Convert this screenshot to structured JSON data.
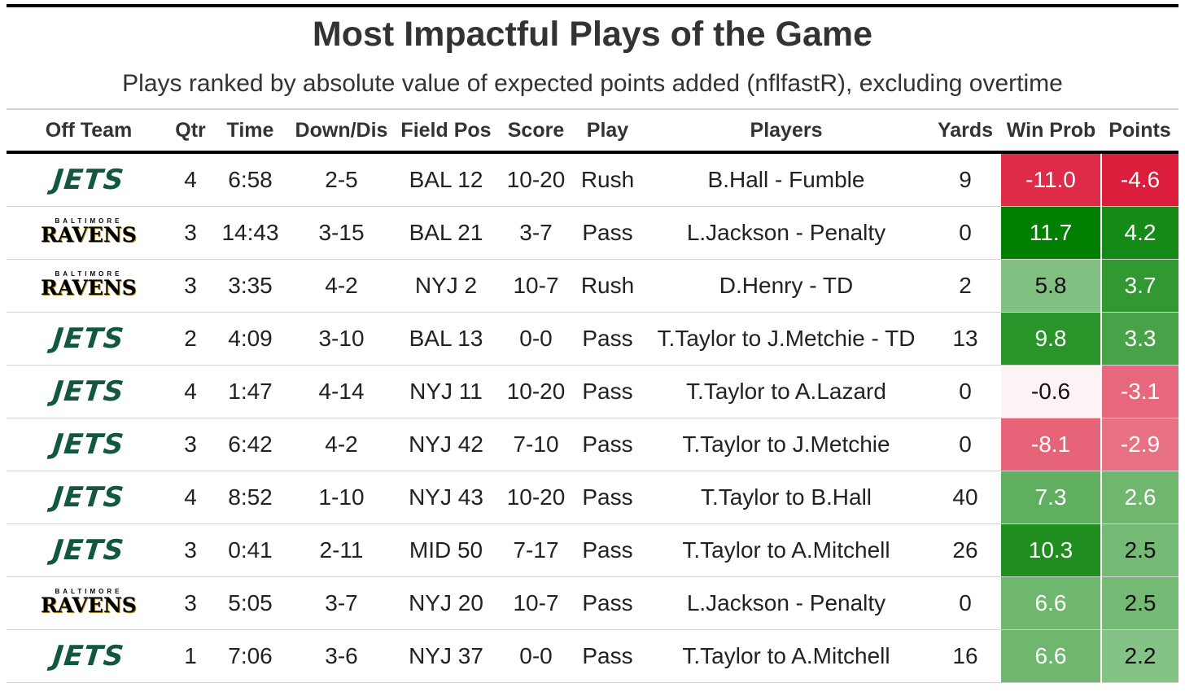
{
  "header": {
    "title": "Most Impactful Plays of the Game",
    "subtitle": "Plays ranked by absolute value of expected points added (nflfastR), excluding overtime"
  },
  "table": {
    "columns": [
      "Off Team",
      "Qtr",
      "Time",
      "Down/Dis",
      "Field Pos",
      "Score",
      "Play",
      "Players",
      "Yards",
      "Win Prob",
      "Points"
    ],
    "positive_color": "#007f00",
    "negative_color": "#dc1e3c",
    "rows": [
      [
        [
          "JETS"
        ],
        "4",
        "6:58",
        "2-5",
        "BAL 12",
        "10-20",
        "Rush",
        "B.Hall - Fumble",
        "9",
        "-11.0",
        "-4.6"
      ],
      [
        [
          "BALTIMORE",
          "RAVENS"
        ],
        "3",
        "14:43",
        "3-15",
        "BAL 21",
        "3-7",
        "Pass",
        "L.Jackson - Penalty",
        "0",
        "11.7",
        "4.2"
      ],
      [
        [
          "BALTIMORE",
          "RAVENS"
        ],
        "3",
        "3:35",
        "4-2",
        "NYJ 2",
        "10-7",
        "Rush",
        "D.Henry - TD",
        "2",
        "5.8",
        "3.7"
      ],
      [
        [
          "JETS"
        ],
        "2",
        "4:09",
        "3-10",
        "BAL 13",
        "0-0",
        "Pass",
        "T.Taylor to J.Metchie - TD",
        "13",
        "9.8",
        "3.3"
      ],
      [
        [
          "JETS"
        ],
        "4",
        "1:47",
        "4-14",
        "NYJ 11",
        "10-20",
        "Pass",
        "T.Taylor to A.Lazard",
        "0",
        "-0.6",
        "-3.1"
      ],
      [
        [
          "JETS"
        ],
        "3",
        "6:42",
        "4-2",
        "NYJ 42",
        "7-10",
        "Pass",
        "T.Taylor to J.Metchie",
        "0",
        "-8.1",
        "-2.9"
      ],
      [
        [
          "JETS"
        ],
        "4",
        "8:52",
        "1-10",
        "NYJ 43",
        "10-20",
        "Pass",
        "T.Taylor to B.Hall",
        "40",
        "7.3",
        "2.6"
      ],
      [
        [
          "JETS"
        ],
        "3",
        "0:41",
        "2-11",
        "MID 50",
        "7-17",
        "Pass",
        "T.Taylor to A.Mitchell",
        "26",
        "10.3",
        "2.5"
      ],
      [
        [
          "BALTIMORE",
          "RAVENS"
        ],
        "3",
        "5:05",
        "3-7",
        "NYJ 20",
        "10-7",
        "Pass",
        "L.Jackson - Penalty",
        "0",
        "6.6",
        "2.5"
      ],
      [
        [
          "JETS"
        ],
        "1",
        "7:06",
        "3-6",
        "NYJ 37",
        "0-0",
        "Pass",
        "T.Taylor to A.Mitchell",
        "16",
        "6.6",
        "2.2"
      ]
    ]
  }
}
